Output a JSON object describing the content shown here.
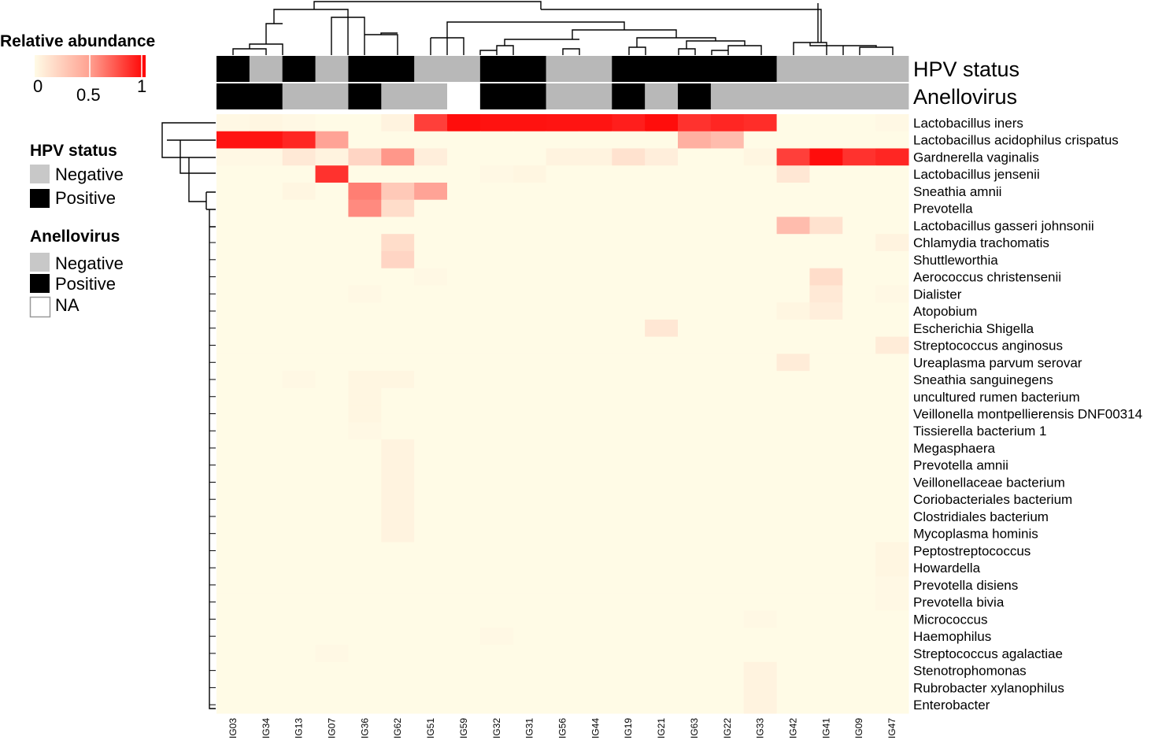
{
  "chart_data": {
    "type": "heatmap",
    "colorbar": {
      "title": "Relative abundance",
      "ticks": [
        "0",
        "0.5",
        "1"
      ],
      "range": [
        0,
        1
      ],
      "low_color": "#fffbe6",
      "high_color": "#ff0000"
    },
    "annotation_legends": [
      {
        "title": "HPV status",
        "entries": [
          {
            "label": "Negative",
            "color": "#b8b8b8"
          },
          {
            "label": "Positive",
            "color": "#000000"
          }
        ]
      },
      {
        "title": "Anellovirus",
        "entries": [
          {
            "label": "Negative",
            "color": "#b8b8b8"
          },
          {
            "label": "Positive",
            "color": "#000000"
          },
          {
            "label": "NA",
            "color": "#ffffff"
          }
        ]
      }
    ],
    "annotation_tracks": [
      {
        "name": "HPV status",
        "values": [
          "Positive",
          "Negative",
          "Positive",
          "Negative",
          "Positive",
          "Positive",
          "Negative",
          "Negative",
          "Positive",
          "Positive",
          "Negative",
          "Negative",
          "Positive",
          "Positive",
          "Positive",
          "Positive",
          "Positive",
          "Negative",
          "Negative",
          "Negative",
          "Negative"
        ]
      },
      {
        "name": "Anellovirus",
        "values": [
          "Positive",
          "Positive",
          "Negative",
          "Negative",
          "Positive",
          "Negative",
          "Negative",
          "NA",
          "Positive",
          "Positive",
          "Negative",
          "Negative",
          "Positive",
          "Negative",
          "Positive",
          "Negative",
          "Negative",
          "Negative",
          "Negative",
          "Negative",
          "Negative"
        ]
      }
    ],
    "columns": [
      "IG03",
      "IG34",
      "IG13",
      "IG07",
      "IG36",
      "IG62",
      "IG51",
      "IG59",
      "IG32",
      "IG31",
      "IG56",
      "IG44",
      "IG19",
      "IG21",
      "IG63",
      "IG22",
      "IG33",
      "IG42",
      "IG41",
      "IG09",
      "IG47"
    ],
    "rows": [
      "Lactobacillus iners",
      "Lactobacillus acidophilus crispatus",
      "Gardnerella vaginalis",
      "Lactobacillus jensenii",
      "Sneathia amnii",
      "Prevotella",
      "Lactobacillus gasseri johnsonii",
      "Chlamydia trachomatis",
      "Shuttleworthia",
      "Aerococcus christensenii",
      "Dialister",
      "Atopobium",
      "Escherichia Shigella",
      "Streptococcus anginosus",
      "Ureaplasma parvum serovar",
      "Sneathia sanguinegens",
      "uncultured rumen bacterium",
      "Veillonella montpellierensis DNF00314",
      "Tissierella bacterium 1",
      "Megasphaera",
      "Prevotella amnii",
      "Veillonellaceae bacterium",
      "Coriobacteriales bacterium",
      "Clostridiales bacterium",
      "Mycoplasma hominis",
      "Peptostreptococcus",
      "Howardella",
      "Prevotella disiens",
      "Prevotella bivia",
      "Micrococcus",
      "Haemophilus",
      "Streptococcus agalactiae",
      "Stenotrophomonas",
      "Rubrobacter xylanophilus",
      "Enterobacter"
    ],
    "values": [
      [
        0.01,
        0.02,
        0.01,
        0.0,
        0.0,
        0.03,
        0.75,
        0.95,
        0.93,
        0.93,
        0.92,
        0.92,
        0.88,
        0.95,
        0.8,
        0.85,
        0.82,
        0.0,
        0.0,
        0.0,
        0.01
      ],
      [
        0.92,
        0.92,
        0.85,
        0.35,
        0.0,
        0.0,
        0.0,
        0.0,
        0.0,
        0.0,
        0.0,
        0.0,
        0.0,
        0.0,
        0.3,
        0.25,
        0.0,
        0.0,
        0.0,
        0.0,
        0.0
      ],
      [
        0.01,
        0.01,
        0.07,
        0.03,
        0.15,
        0.4,
        0.05,
        0.0,
        0.0,
        0.0,
        0.03,
        0.03,
        0.1,
        0.05,
        0.0,
        0.0,
        0.02,
        0.75,
        0.95,
        0.8,
        0.85
      ],
      [
        0.0,
        0.0,
        0.0,
        0.8,
        0.0,
        0.0,
        0.0,
        0.0,
        0.01,
        0.02,
        0.0,
        0.0,
        0.0,
        0.0,
        0.0,
        0.0,
        0.0,
        0.08,
        0.0,
        0.0,
        0.0
      ],
      [
        0.0,
        0.0,
        0.02,
        0.0,
        0.5,
        0.2,
        0.35,
        0.0,
        0.0,
        0.0,
        0.0,
        0.0,
        0.0,
        0.0,
        0.0,
        0.0,
        0.0,
        0.0,
        0.0,
        0.0,
        0.0
      ],
      [
        0.0,
        0.0,
        0.0,
        0.0,
        0.45,
        0.12,
        0.0,
        0.0,
        0.0,
        0.0,
        0.0,
        0.0,
        0.0,
        0.0,
        0.0,
        0.0,
        0.0,
        0.0,
        0.0,
        0.0,
        0.0
      ],
      [
        0.0,
        0.0,
        0.0,
        0.0,
        0.0,
        0.0,
        0.0,
        0.0,
        0.0,
        0.0,
        0.0,
        0.0,
        0.0,
        0.0,
        0.0,
        0.0,
        0.0,
        0.25,
        0.1,
        0.0,
        0.0
      ],
      [
        0.0,
        0.0,
        0.0,
        0.0,
        0.0,
        0.12,
        0.0,
        0.0,
        0.0,
        0.0,
        0.0,
        0.0,
        0.0,
        0.0,
        0.0,
        0.0,
        0.0,
        0.0,
        0.0,
        0.0,
        0.03
      ],
      [
        0.0,
        0.0,
        0.0,
        0.0,
        0.0,
        0.15,
        0.0,
        0.0,
        0.0,
        0.0,
        0.0,
        0.0,
        0.0,
        0.0,
        0.0,
        0.0,
        0.0,
        0.0,
        0.0,
        0.0,
        0.0
      ],
      [
        0.0,
        0.0,
        0.0,
        0.0,
        0.0,
        0.0,
        0.01,
        0.0,
        0.0,
        0.0,
        0.0,
        0.0,
        0.0,
        0.0,
        0.0,
        0.0,
        0.0,
        0.0,
        0.12,
        0.0,
        0.0
      ],
      [
        0.0,
        0.0,
        0.0,
        0.0,
        0.01,
        0.0,
        0.0,
        0.0,
        0.0,
        0.0,
        0.0,
        0.0,
        0.0,
        0.0,
        0.0,
        0.0,
        0.0,
        0.0,
        0.07,
        0.0,
        0.01
      ],
      [
        0.0,
        0.0,
        0.0,
        0.0,
        0.0,
        0.0,
        0.0,
        0.0,
        0.0,
        0.0,
        0.0,
        0.0,
        0.0,
        0.0,
        0.0,
        0.0,
        0.0,
        0.02,
        0.05,
        0.0,
        0.0
      ],
      [
        0.0,
        0.0,
        0.0,
        0.0,
        0.0,
        0.0,
        0.0,
        0.0,
        0.0,
        0.0,
        0.0,
        0.0,
        0.0,
        0.08,
        0.0,
        0.0,
        0.0,
        0.0,
        0.0,
        0.0,
        0.0
      ],
      [
        0.0,
        0.0,
        0.0,
        0.0,
        0.0,
        0.0,
        0.0,
        0.0,
        0.0,
        0.0,
        0.0,
        0.0,
        0.0,
        0.0,
        0.0,
        0.0,
        0.0,
        0.0,
        0.0,
        0.0,
        0.06
      ],
      [
        0.0,
        0.0,
        0.0,
        0.0,
        0.0,
        0.0,
        0.0,
        0.0,
        0.0,
        0.0,
        0.0,
        0.0,
        0.0,
        0.0,
        0.0,
        0.0,
        0.0,
        0.06,
        0.0,
        0.0,
        0.0
      ],
      [
        0.0,
        0.0,
        0.01,
        0.0,
        0.02,
        0.02,
        0.0,
        0.0,
        0.0,
        0.0,
        0.0,
        0.0,
        0.0,
        0.0,
        0.0,
        0.0,
        0.0,
        0.0,
        0.0,
        0.0,
        0.0
      ],
      [
        0.0,
        0.0,
        0.0,
        0.0,
        0.02,
        0.0,
        0.0,
        0.0,
        0.0,
        0.0,
        0.0,
        0.0,
        0.0,
        0.0,
        0.0,
        0.0,
        0.0,
        0.0,
        0.0,
        0.0,
        0.0
      ],
      [
        0.0,
        0.0,
        0.0,
        0.0,
        0.02,
        0.0,
        0.0,
        0.0,
        0.0,
        0.0,
        0.0,
        0.0,
        0.0,
        0.0,
        0.0,
        0.0,
        0.0,
        0.0,
        0.0,
        0.0,
        0.0
      ],
      [
        0.0,
        0.0,
        0.0,
        0.0,
        0.01,
        0.0,
        0.0,
        0.0,
        0.0,
        0.0,
        0.0,
        0.0,
        0.0,
        0.0,
        0.0,
        0.0,
        0.0,
        0.0,
        0.0,
        0.0,
        0.0
      ],
      [
        0.0,
        0.0,
        0.0,
        0.0,
        0.0,
        0.03,
        0.0,
        0.0,
        0.0,
        0.0,
        0.0,
        0.0,
        0.0,
        0.0,
        0.0,
        0.0,
        0.0,
        0.0,
        0.0,
        0.0,
        0.0
      ],
      [
        0.0,
        0.0,
        0.0,
        0.0,
        0.0,
        0.03,
        0.0,
        0.0,
        0.0,
        0.0,
        0.0,
        0.0,
        0.0,
        0.0,
        0.0,
        0.0,
        0.0,
        0.0,
        0.0,
        0.0,
        0.0
      ],
      [
        0.0,
        0.0,
        0.0,
        0.0,
        0.0,
        0.03,
        0.0,
        0.0,
        0.0,
        0.0,
        0.0,
        0.0,
        0.0,
        0.0,
        0.0,
        0.0,
        0.0,
        0.0,
        0.0,
        0.0,
        0.0
      ],
      [
        0.0,
        0.0,
        0.0,
        0.0,
        0.0,
        0.03,
        0.0,
        0.0,
        0.0,
        0.0,
        0.0,
        0.0,
        0.0,
        0.0,
        0.0,
        0.0,
        0.0,
        0.0,
        0.0,
        0.0,
        0.0
      ],
      [
        0.0,
        0.0,
        0.0,
        0.0,
        0.0,
        0.03,
        0.0,
        0.0,
        0.0,
        0.0,
        0.0,
        0.0,
        0.0,
        0.0,
        0.0,
        0.0,
        0.0,
        0.0,
        0.0,
        0.0,
        0.0
      ],
      [
        0.0,
        0.0,
        0.0,
        0.0,
        0.0,
        0.03,
        0.0,
        0.0,
        0.0,
        0.0,
        0.0,
        0.0,
        0.0,
        0.0,
        0.0,
        0.0,
        0.0,
        0.0,
        0.0,
        0.0,
        0.0
      ],
      [
        0.0,
        0.0,
        0.0,
        0.0,
        0.0,
        0.0,
        0.0,
        0.0,
        0.0,
        0.0,
        0.0,
        0.0,
        0.0,
        0.0,
        0.0,
        0.0,
        0.0,
        0.0,
        0.0,
        0.0,
        0.02
      ],
      [
        0.0,
        0.0,
        0.0,
        0.0,
        0.0,
        0.0,
        0.0,
        0.0,
        0.0,
        0.0,
        0.0,
        0.0,
        0.0,
        0.0,
        0.0,
        0.0,
        0.0,
        0.0,
        0.0,
        0.0,
        0.02
      ],
      [
        0.0,
        0.0,
        0.0,
        0.0,
        0.0,
        0.0,
        0.0,
        0.0,
        0.0,
        0.0,
        0.0,
        0.0,
        0.0,
        0.0,
        0.0,
        0.0,
        0.0,
        0.0,
        0.0,
        0.0,
        0.01
      ],
      [
        0.0,
        0.0,
        0.0,
        0.0,
        0.0,
        0.0,
        0.0,
        0.0,
        0.0,
        0.0,
        0.0,
        0.0,
        0.0,
        0.0,
        0.0,
        0.0,
        0.0,
        0.0,
        0.0,
        0.0,
        0.01
      ],
      [
        0.0,
        0.0,
        0.0,
        0.0,
        0.0,
        0.0,
        0.0,
        0.0,
        0.0,
        0.0,
        0.0,
        0.0,
        0.0,
        0.0,
        0.0,
        0.0,
        0.01,
        0.0,
        0.0,
        0.0,
        0.0
      ],
      [
        0.0,
        0.0,
        0.0,
        0.0,
        0.0,
        0.0,
        0.0,
        0.0,
        0.01,
        0.0,
        0.0,
        0.0,
        0.0,
        0.0,
        0.0,
        0.0,
        0.0,
        0.0,
        0.0,
        0.0,
        0.0
      ],
      [
        0.0,
        0.0,
        0.0,
        0.01,
        0.0,
        0.0,
        0.0,
        0.0,
        0.0,
        0.0,
        0.0,
        0.0,
        0.0,
        0.0,
        0.0,
        0.0,
        0.0,
        0.0,
        0.0,
        0.0,
        0.0
      ],
      [
        0.0,
        0.0,
        0.0,
        0.0,
        0.0,
        0.0,
        0.0,
        0.0,
        0.0,
        0.0,
        0.0,
        0.0,
        0.0,
        0.0,
        0.0,
        0.0,
        0.03,
        0.0,
        0.0,
        0.0,
        0.0
      ],
      [
        0.0,
        0.0,
        0.0,
        0.0,
        0.0,
        0.0,
        0.0,
        0.0,
        0.0,
        0.0,
        0.0,
        0.0,
        0.0,
        0.0,
        0.0,
        0.0,
        0.03,
        0.0,
        0.0,
        0.0,
        0.0
      ],
      [
        0.0,
        0.0,
        0.0,
        0.0,
        0.0,
        0.0,
        0.0,
        0.0,
        0.0,
        0.0,
        0.0,
        0.0,
        0.0,
        0.0,
        0.0,
        0.0,
        0.03,
        0.0,
        0.0,
        0.0,
        0.0
      ]
    ]
  }
}
